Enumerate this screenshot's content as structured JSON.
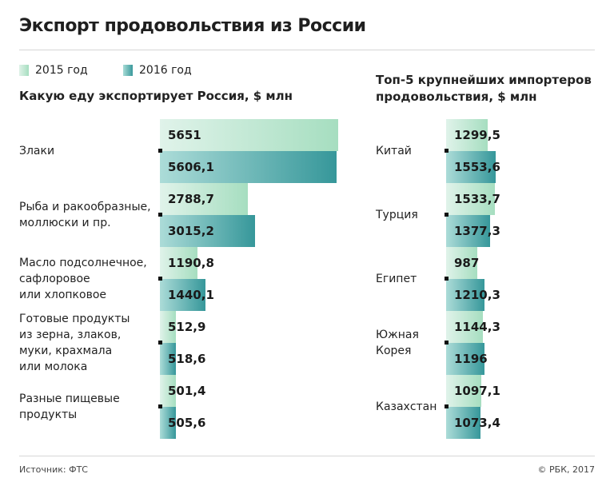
{
  "title": "Экспорт продовольствия из России",
  "legend": {
    "y2015": "2015 год",
    "y2016": "2016 год"
  },
  "colors": {
    "2015": "#a6dec0",
    "2016": "#36979a"
  },
  "footer": {
    "source": "Источник: ФТС",
    "copyright": "© РБК, 2017"
  },
  "chart_data": [
    {
      "type": "bar",
      "orientation": "horizontal",
      "title": "Какую еду экспортирует Россия, $ млн",
      "categories": [
        "Злаки",
        "Рыба и ракообразные, моллюски и пр.",
        "Масло подсолнечное, сафлоровое или хлопковое",
        "Готовые продукты из зерна, злаков, муки, крахмала или молока",
        "Разные пищевые продукты"
      ],
      "category_lines": [
        [
          "Злаки"
        ],
        [
          "Рыба и ракообразные,",
          "моллюски и пр."
        ],
        [
          "Масло подсолнечное,",
          "сафлоровое",
          "или хлопковое"
        ],
        [
          "Готовые продукты",
          "из зерна, злаков,",
          "муки, крахмала",
          "или молока"
        ],
        [
          "Разные пищевые",
          "продукты"
        ]
      ],
      "series": [
        {
          "name": "2015 год",
          "values": [
            5651,
            2788.7,
            1190.8,
            512.9,
            501.4
          ],
          "labels": [
            "5651",
            "2788,7",
            "1190,8",
            "512,9",
            "501,4"
          ]
        },
        {
          "name": "2016 год",
          "values": [
            5606.1,
            3015.2,
            1440.1,
            518.6,
            505.6
          ],
          "labels": [
            "5606,1",
            "3015,2",
            "1440,1",
            "518,6",
            "505,6"
          ]
        }
      ]
    },
    {
      "type": "bar",
      "orientation": "horizontal",
      "title": "Топ-5 крупнейших импортеров продовольствия, $ млн",
      "title_lines": [
        "Топ-5 крупнейших импортеров",
        "продовольствия, $ млн"
      ],
      "categories": [
        "Китай",
        "Турция",
        "Египет",
        "Южная Корея",
        "Казахстан"
      ],
      "category_lines": [
        [
          "Китай"
        ],
        [
          "Турция"
        ],
        [
          "Египет"
        ],
        [
          "Южная",
          "Корея"
        ],
        [
          "Казахстан"
        ]
      ],
      "series": [
        {
          "name": "2015 год",
          "values": [
            1299.5,
            1533.7,
            987,
            1144.3,
            1097.1
          ],
          "labels": [
            "1299,5",
            "1533,7",
            "987",
            "1144,3",
            "1097,1"
          ]
        },
        {
          "name": "2016 год",
          "values": [
            1553.6,
            1377.3,
            1210.3,
            1196,
            1073.4
          ],
          "labels": [
            "1553,6",
            "1377,3",
            "1210,3",
            "1196",
            "1073,4"
          ]
        }
      ]
    }
  ]
}
